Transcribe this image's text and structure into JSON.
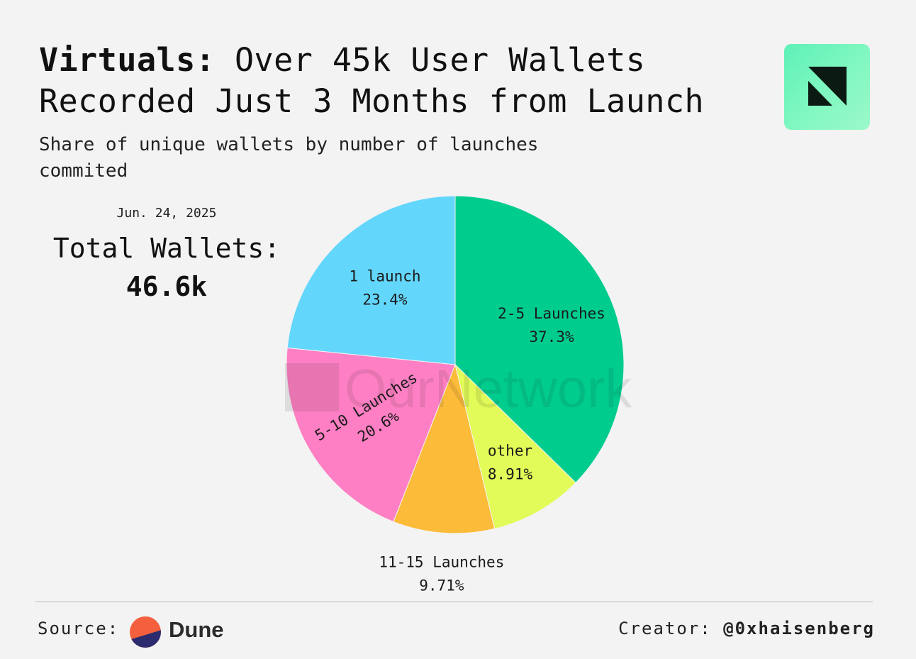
{
  "header": {
    "title_bold": "Virtuals:",
    "title_rest": "Over 45k User Wallets Recorded Just 3 Months from Launch",
    "subtitle": "Share of unique wallets by number of launches commited"
  },
  "summary": {
    "date": "Jun. 24, 2025",
    "total_label": "Total Wallets:",
    "total_value": "46.6k"
  },
  "watermark": "OurNetwork",
  "footer": {
    "source_label": "Source:",
    "source_name": "Dune",
    "creator_label": "Creator:",
    "creator_handle": "@0xhaisenberg"
  },
  "colors": {
    "background": "#f3f3f3",
    "logo_bg": "#7ff7c0"
  },
  "chart_data": {
    "type": "pie",
    "title": "Share of unique wallets by number of launches commited",
    "slices": [
      {
        "label": "2-5 Launches",
        "value_label": "37.3%",
        "value": 37.3,
        "color": "#00cc8e"
      },
      {
        "label": "other",
        "value_label": "8.91%",
        "value": 8.91,
        "color": "#e2fb58"
      },
      {
        "label": "11-15 Launches",
        "value_label": "9.71%",
        "value": 9.71,
        "color": "#fcbb38"
      },
      {
        "label": "5-10 Launches",
        "value_label": "20.6%",
        "value": 20.6,
        "color": "#fe7fc3"
      },
      {
        "label": "1 launch",
        "value_label": "23.4%",
        "value": 23.4,
        "color": "#63d6fc"
      }
    ]
  }
}
